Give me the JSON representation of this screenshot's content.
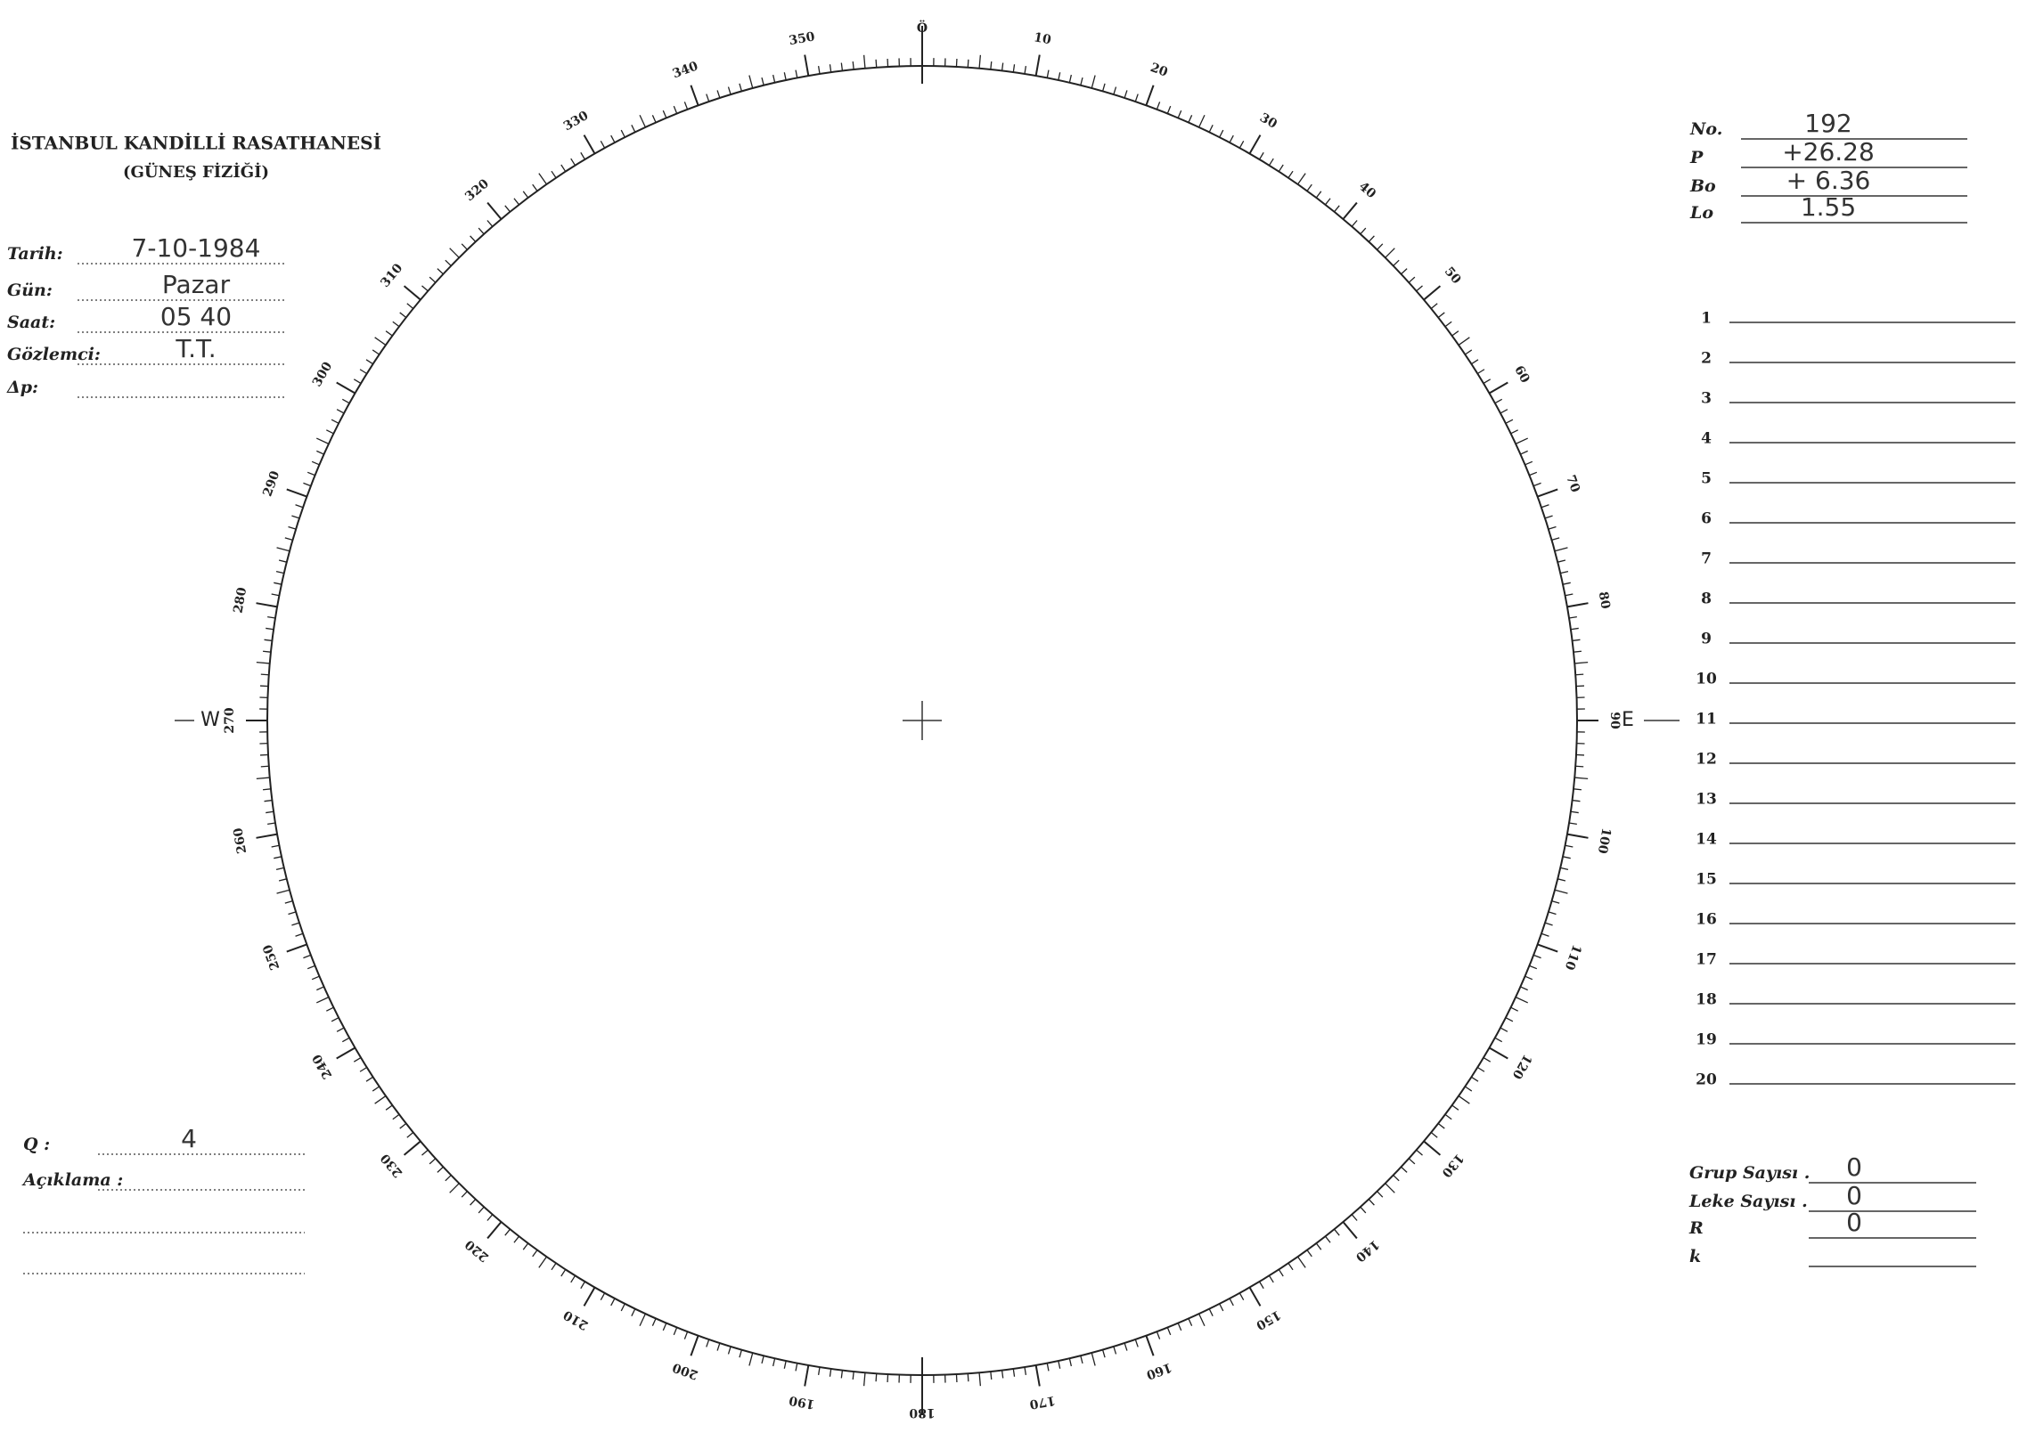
{
  "header": {
    "title": "İSTANBUL KANDİLLİ RASATHANESİ",
    "subtitle": "(GÜNEŞ FİZİĞİ)"
  },
  "observation": [
    {
      "label": "Tarih:",
      "value": "7-10-1984"
    },
    {
      "label": "Gün:",
      "value": "Pazar"
    },
    {
      "label": "Saat:",
      "value": "05 40"
    },
    {
      "label": "Gözlemci:",
      "value": "T.T."
    },
    {
      "label": "Δp:"
    }
  ],
  "remarks": [
    {
      "label": "Q :",
      "value": "4"
    },
    {
      "label": "Açıklama :"
    }
  ],
  "parameters": [
    {
      "label": "No.",
      "value": "192"
    },
    {
      "label": "P",
      "value": "+26.28"
    },
    {
      "label": "Bo",
      "value": "+ 6.36"
    },
    {
      "label": "Lo",
      "value": "1.55"
    }
  ],
  "rows": [
    1,
    2,
    3,
    4,
    5,
    6,
    7,
    8,
    9,
    10,
    11,
    12,
    13,
    14,
    15,
    16,
    17,
    18,
    19,
    20
  ],
  "counts": [
    {
      "label": "Grup Sayısı .",
      "value": "0"
    },
    {
      "label": "Leke Sayısı .",
      "value": "0"
    },
    {
      "label": "R",
      "value": "0"
    },
    {
      "label": "k"
    }
  ],
  "dial": {
    "labels": [
      "Ö",
      "10",
      "20",
      "30",
      "40",
      "50",
      "60",
      "70",
      "80",
      "90",
      "100",
      "110",
      "120",
      "130",
      "140",
      "150",
      "160",
      "170",
      "180",
      "190",
      "200",
      "210",
      "220",
      "230",
      "240",
      "250",
      "260",
      "270",
      "280",
      "290",
      "300",
      "310",
      "320",
      "330",
      "340",
      "350"
    ],
    "west": "W",
    "east": "E"
  }
}
